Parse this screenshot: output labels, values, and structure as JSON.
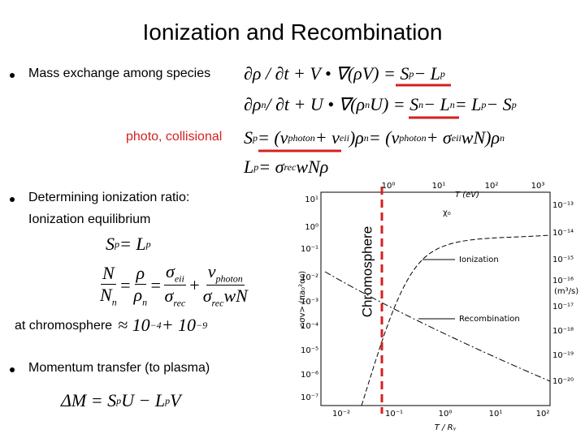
{
  "title": "Ionization and Recombination",
  "bullets": [
    "Mass exchange among species",
    "Determining ionization ratio:",
    "Momentum transfer (to plasma)"
  ],
  "notes": {
    "photo_collisional": "photo, collisional",
    "ionization_equilibrium": "Ionization equilibrium",
    "at_chromosphere": "at chromosphere"
  },
  "equations": [
    [
      {
        "t": "∂ρ / ∂t + V • ∇(ρV) = S",
        "sub": "p"
      },
      {
        "t": " − L",
        "sub": "p"
      }
    ],
    [
      {
        "t": "∂ρ",
        "sub": "n"
      },
      {
        "t": " / ∂t + U • ∇(ρ",
        "sub": "n"
      },
      {
        "t": "U) = S",
        "sub": "n"
      },
      {
        "t": " − L",
        "sub": "n"
      },
      {
        "t": " = L",
        "sub": "p"
      },
      {
        "t": " − S",
        "sub": "p"
      }
    ],
    [
      {
        "t": "S",
        "sub": "p"
      },
      {
        "t": " = (ν",
        "sub": "photon"
      },
      {
        "t": " + ν",
        "sub": "eii"
      },
      {
        "t": ")ρ",
        "sub": "n"
      },
      {
        "t": " = (ν",
        "sub": "photon"
      },
      {
        "t": " + σ",
        "sub": "eii"
      },
      {
        "t": "wN)ρ",
        "sub": "n"
      }
    ],
    [
      {
        "t": "L",
        "sub": "p"
      },
      {
        "t": " = σ",
        "sub": "rec"
      },
      {
        "t": "wNρ"
      }
    ],
    [
      {
        "t": "S",
        "sub": "p"
      },
      {
        "t": " = L",
        "sub": "p"
      }
    ],
    [
      {
        "num": [
          {
            "t": "N"
          }
        ],
        "den": [
          {
            "t": "N",
            "sub": "n"
          }
        ]
      },
      {
        "t": " = "
      },
      {
        "num": [
          {
            "t": "ρ"
          }
        ],
        "den": [
          {
            "t": "ρ",
            "sub": "n"
          }
        ]
      },
      {
        "t": " = "
      },
      {
        "num": [
          {
            "t": "σ",
            "sub": "eii"
          }
        ],
        "den": [
          {
            "t": "σ",
            "sub": "rec"
          }
        ]
      },
      {
        "t": " + "
      },
      {
        "num": [
          {
            "t": "ν",
            "sub": "photon"
          }
        ],
        "den": [
          {
            "t": "σ",
            "sub": "rec"
          },
          {
            "t": "wN"
          }
        ]
      }
    ],
    [
      {
        "t": "≈ 10",
        "sup": "−4"
      },
      {
        "t": " + 10",
        "sup": "−9"
      }
    ],
    [
      {
        "t": "ΔM = S",
        "sub": "p"
      },
      {
        "t": "U − L",
        "sub": "p"
      },
      {
        "t": "V"
      }
    ]
  ],
  "plot": {
    "top_ticks": [
      "10⁰",
      "10¹",
      "10²",
      "10³"
    ],
    "top_label": "T (eV)",
    "left_ticks": [
      "10¹",
      "10⁰",
      "10⁻¹",
      "10⁻²",
      "10⁻³",
      "10⁻⁴",
      "10⁻⁵",
      "10⁻⁶",
      "10⁻⁷"
    ],
    "left_label": "<σv> (πa₀²αc)",
    "right_ticks": [
      "10⁻¹³",
      "10⁻¹⁴",
      "10⁻¹⁵",
      "10⁻¹⁶",
      "10⁻¹⁷",
      "10⁻¹⁸",
      "10⁻¹⁹",
      "10⁻²⁰"
    ],
    "right_label": "(m³/s)",
    "bottom_ticks": [
      "10⁻²",
      "10⁻¹",
      "10⁰",
      "10¹",
      "10²"
    ],
    "bottom_label": "T / Rᵧ",
    "curve_labels": [
      "Ionization",
      "Recombination",
      "χ₀"
    ],
    "marker_label": "Chromosphere"
  }
}
